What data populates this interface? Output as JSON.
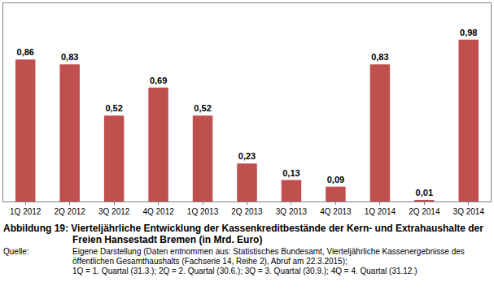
{
  "chart_data": {
    "type": "bar",
    "title": "Abbildung 19: Vierteljährliche Entwicklung der Kassenkreditbestände der Kern- und Extrahaushalte der Freien Hansestadt Bremen (in Mrd. Euro)",
    "source": {
      "label": "Quelle:",
      "lines": [
        "Eigene Darstellung (Daten entnommen aus: Statistisches Bundesamt, Vierteljährliche Kassenergebnisse des öffentlichen Gesamthaushalts (Fachserie 14, Reihe 2), Abruf am 22.3.2015);",
        "1Q = 1. Quartal (31.3.); 2Q = 2. Quartal (30.6.); 3Q = 3. Quartal (30.9.); 4Q = 4. Quartal (31.12.)"
      ]
    },
    "categories": [
      "1Q 2012",
      "2Q 2012",
      "3Q 2012",
      "4Q 2012",
      "1Q 2013",
      "2Q 2013",
      "3Q 2013",
      "4Q 2013",
      "1Q 2014",
      "2Q 2014",
      "3Q 2014"
    ],
    "values": [
      0.86,
      0.83,
      0.52,
      0.69,
      0.52,
      0.23,
      0.13,
      0.09,
      0.83,
      0.01,
      0.98
    ],
    "value_labels": [
      "0,86",
      "0,83",
      "0,52",
      "0,69",
      "0,52",
      "0,23",
      "0,13",
      "0,09",
      "0,83",
      "0,01",
      "0,98"
    ],
    "color": "#c0504d",
    "ylim": [
      0,
      1.2
    ],
    "grid": false,
    "data_labels": true,
    "tick_labels": "x"
  }
}
